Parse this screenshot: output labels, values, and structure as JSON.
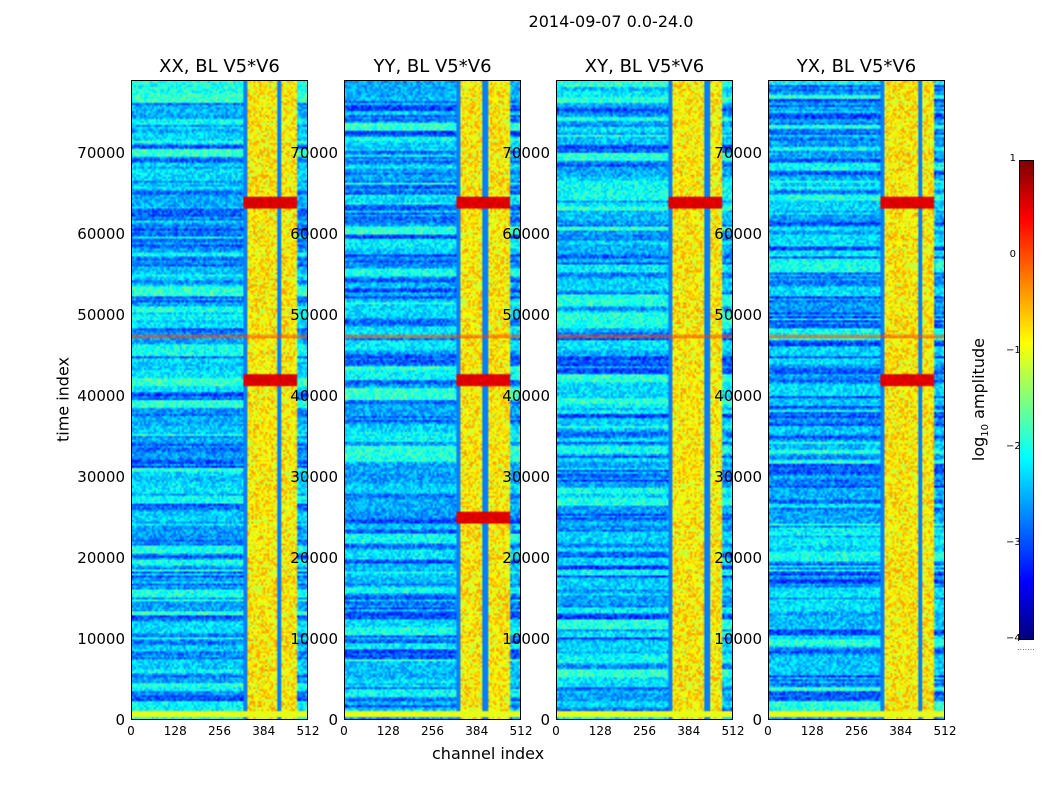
{
  "suptitle": "2014-09-07 0.0-24.0",
  "chart_data": [
    {
      "type": "heatmap",
      "title": "XX, BL V5*V6",
      "xlabel": "channel index",
      "ylabel": "time index",
      "xlim": [
        0,
        512
      ],
      "ylim": [
        0,
        79000
      ],
      "xticks": [
        "0",
        "128",
        "256",
        "384",
        "512"
      ],
      "yticks": [
        "0",
        "10000",
        "20000",
        "30000",
        "40000",
        "50000",
        "60000",
        "70000"
      ],
      "bright_band_channels": [
        325,
        480
      ],
      "red_band_time_indices": [
        42000,
        64000
      ]
    },
    {
      "type": "heatmap",
      "title": "YY, BL V5*V6",
      "xlim": [
        0,
        512
      ],
      "ylim": [
        0,
        79000
      ],
      "xticks": [
        "0",
        "128",
        "256",
        "384",
        "512"
      ],
      "yticks": [
        "0",
        "10000",
        "20000",
        "30000",
        "40000",
        "50000",
        "60000",
        "70000"
      ],
      "bright_band_channels": [
        325,
        480
      ],
      "red_band_time_indices": [
        25000,
        42000,
        64000
      ]
    },
    {
      "type": "heatmap",
      "title": "XY, BL V5*V6",
      "xlim": [
        0,
        512
      ],
      "ylim": [
        0,
        79000
      ],
      "xticks": [
        "0",
        "128",
        "256",
        "384",
        "512"
      ],
      "yticks": [
        "0",
        "10000",
        "20000",
        "30000",
        "40000",
        "50000",
        "60000",
        "70000"
      ],
      "bright_band_channels": [
        325,
        480
      ],
      "red_band_time_indices": [
        64000
      ]
    },
    {
      "type": "heatmap",
      "title": "YX, BL V5*V6",
      "xlim": [
        0,
        512
      ],
      "ylim": [
        0,
        79000
      ],
      "xticks": [
        "0",
        "128",
        "256",
        "384",
        "512"
      ],
      "yticks": [
        "0",
        "10000",
        "20000",
        "30000",
        "40000",
        "50000",
        "60000",
        "70000"
      ],
      "bright_band_channels": [
        325,
        480
      ],
      "red_band_time_indices": [
        42000,
        64000
      ]
    }
  ],
  "colorbar": {
    "label_prefix": "log",
    "label_sub": "10",
    "label_suffix": " amplitude",
    "range": [
      -4,
      1
    ],
    "ticks": [
      "1",
      "0",
      "−1",
      "−2",
      "−3",
      "−4"
    ]
  }
}
